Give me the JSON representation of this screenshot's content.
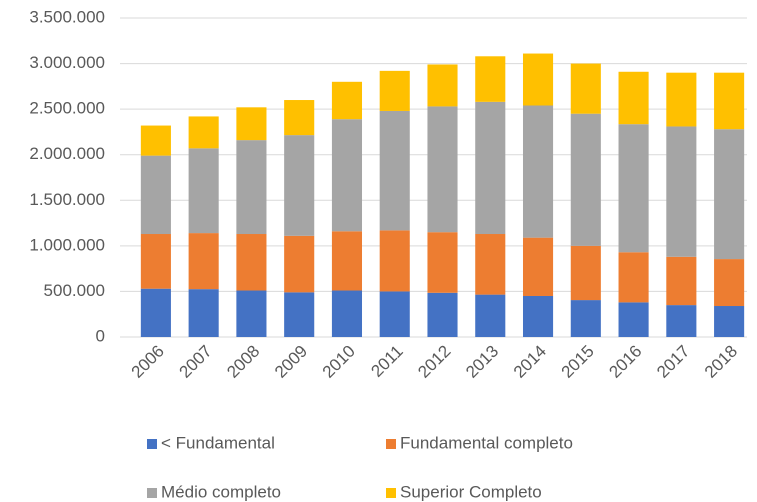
{
  "chart_data": {
    "type": "stacked_bar",
    "categories": [
      "2006",
      "2007",
      "2008",
      "2009",
      "2010",
      "2011",
      "2012",
      "2013",
      "2014",
      "2015",
      "2016",
      "2017",
      "2018"
    ],
    "series": [
      {
        "name": "< Fundamental",
        "color": "#4472c4",
        "values": [
          530000,
          525000,
          510000,
          490000,
          510000,
          500000,
          485000,
          465000,
          450000,
          405000,
          380000,
          350000,
          340000
        ]
      },
      {
        "name": "Fundamental completo",
        "color": "#ed7d31",
        "values": [
          600000,
          615000,
          620000,
          620000,
          650000,
          670000,
          665000,
          665000,
          640000,
          595000,
          550000,
          530000,
          515000
        ]
      },
      {
        "name": "Médio completo",
        "color": "#a5a5a5",
        "values": [
          860000,
          930000,
          1030000,
          1105000,
          1230000,
          1310000,
          1380000,
          1450000,
          1450000,
          1450000,
          1405000,
          1430000,
          1425000
        ]
      },
      {
        "name": "Superior Completo",
        "color": "#ffc000",
        "values": [
          330000,
          350000,
          360000,
          385000,
          410000,
          440000,
          460000,
          500000,
          570000,
          550000,
          575000,
          590000,
          620000
        ]
      }
    ],
    "ylim": [
      0,
      3500000
    ],
    "yticks": [
      0,
      {
        "value": 500000,
        "label": "500.000"
      },
      {
        "value": 1000000,
        "label": "1.000.000"
      },
      {
        "value": 1500000,
        "label": "1.500.000"
      },
      {
        "value": 2000000,
        "label": "2.000.000"
      },
      {
        "value": 2500000,
        "label": "2.500.000"
      },
      {
        "value": 3000000,
        "label": "3.000.000"
      },
      {
        "value": 3500000,
        "label": "3.500.000"
      }
    ],
    "grid": true
  }
}
